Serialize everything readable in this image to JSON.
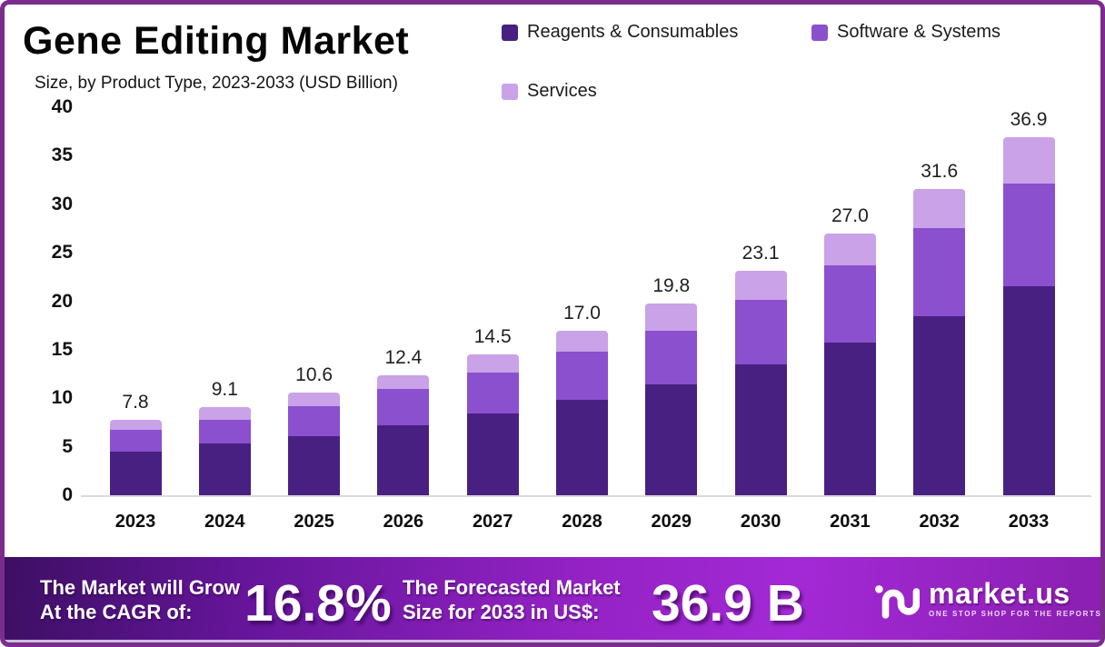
{
  "header": {
    "title": "Gene Editing Market",
    "subtitle": "Size, by Product Type, 2023-2033 (USD Billion)"
  },
  "chart_data": {
    "type": "bar",
    "stacked": true,
    "title": "Gene Editing Market Size, by Product Type, 2023-2033 (USD Billion)",
    "unit": "USD Billion",
    "categories": [
      "2023",
      "2024",
      "2025",
      "2026",
      "2027",
      "2028",
      "2029",
      "2030",
      "2031",
      "2032",
      "2033"
    ],
    "series": [
      {
        "name": "Reagents & Consumables",
        "color": "#482081",
        "values": [
          4.5,
          5.3,
          6.1,
          7.2,
          8.4,
          9.8,
          11.4,
          13.5,
          15.7,
          18.5,
          21.5
        ]
      },
      {
        "name": "Software & Systems",
        "color": "#8a50ce",
        "values": [
          2.2,
          2.5,
          3.1,
          3.8,
          4.2,
          5.0,
          5.6,
          6.6,
          8.0,
          9.0,
          10.6
        ]
      },
      {
        "name": "Services",
        "color": "#c9a2e8",
        "values": [
          1.1,
          1.3,
          1.4,
          1.4,
          1.9,
          2.2,
          2.8,
          3.0,
          3.3,
          4.1,
          4.8
        ]
      }
    ],
    "totals": [
      7.8,
      9.1,
      10.6,
      12.4,
      14.5,
      17.0,
      19.8,
      23.1,
      27.0,
      31.6,
      36.9
    ],
    "total_labels": [
      "7.8",
      "9.1",
      "10.6",
      "12.4",
      "14.5",
      "17.0",
      "19.8",
      "23.1",
      "27.0",
      "31.6",
      "36.9"
    ],
    "xlabel": "",
    "ylabel": "",
    "ylim": [
      0,
      40
    ],
    "yticks": [
      0,
      5,
      10,
      15,
      20,
      25,
      30,
      35,
      40
    ],
    "grid": false,
    "legend_position": "top-right"
  },
  "footer": {
    "cagr_label_line1": "The Market will Grow",
    "cagr_label_line2": "At the CAGR of:",
    "cagr_value": "16.8%",
    "forecast_label_line1": "The Forecasted Market",
    "forecast_label_line2": "Size for 2033 in US$:",
    "forecast_value": "36.9 B",
    "brand": "market.us",
    "brand_tagline": "ONE STOP SHOP FOR THE REPORTS"
  },
  "colors": {
    "frame_border": "#7b2d8e",
    "reagents": "#482081",
    "software": "#8a50ce",
    "services": "#c9a2e8",
    "footer_gradient_left": "#3d0f63",
    "footer_gradient_mid": "#a329d6",
    "footer_gradient_right": "#8a1fb0",
    "axis_line": "#d9d9d9",
    "text": "#111111"
  }
}
